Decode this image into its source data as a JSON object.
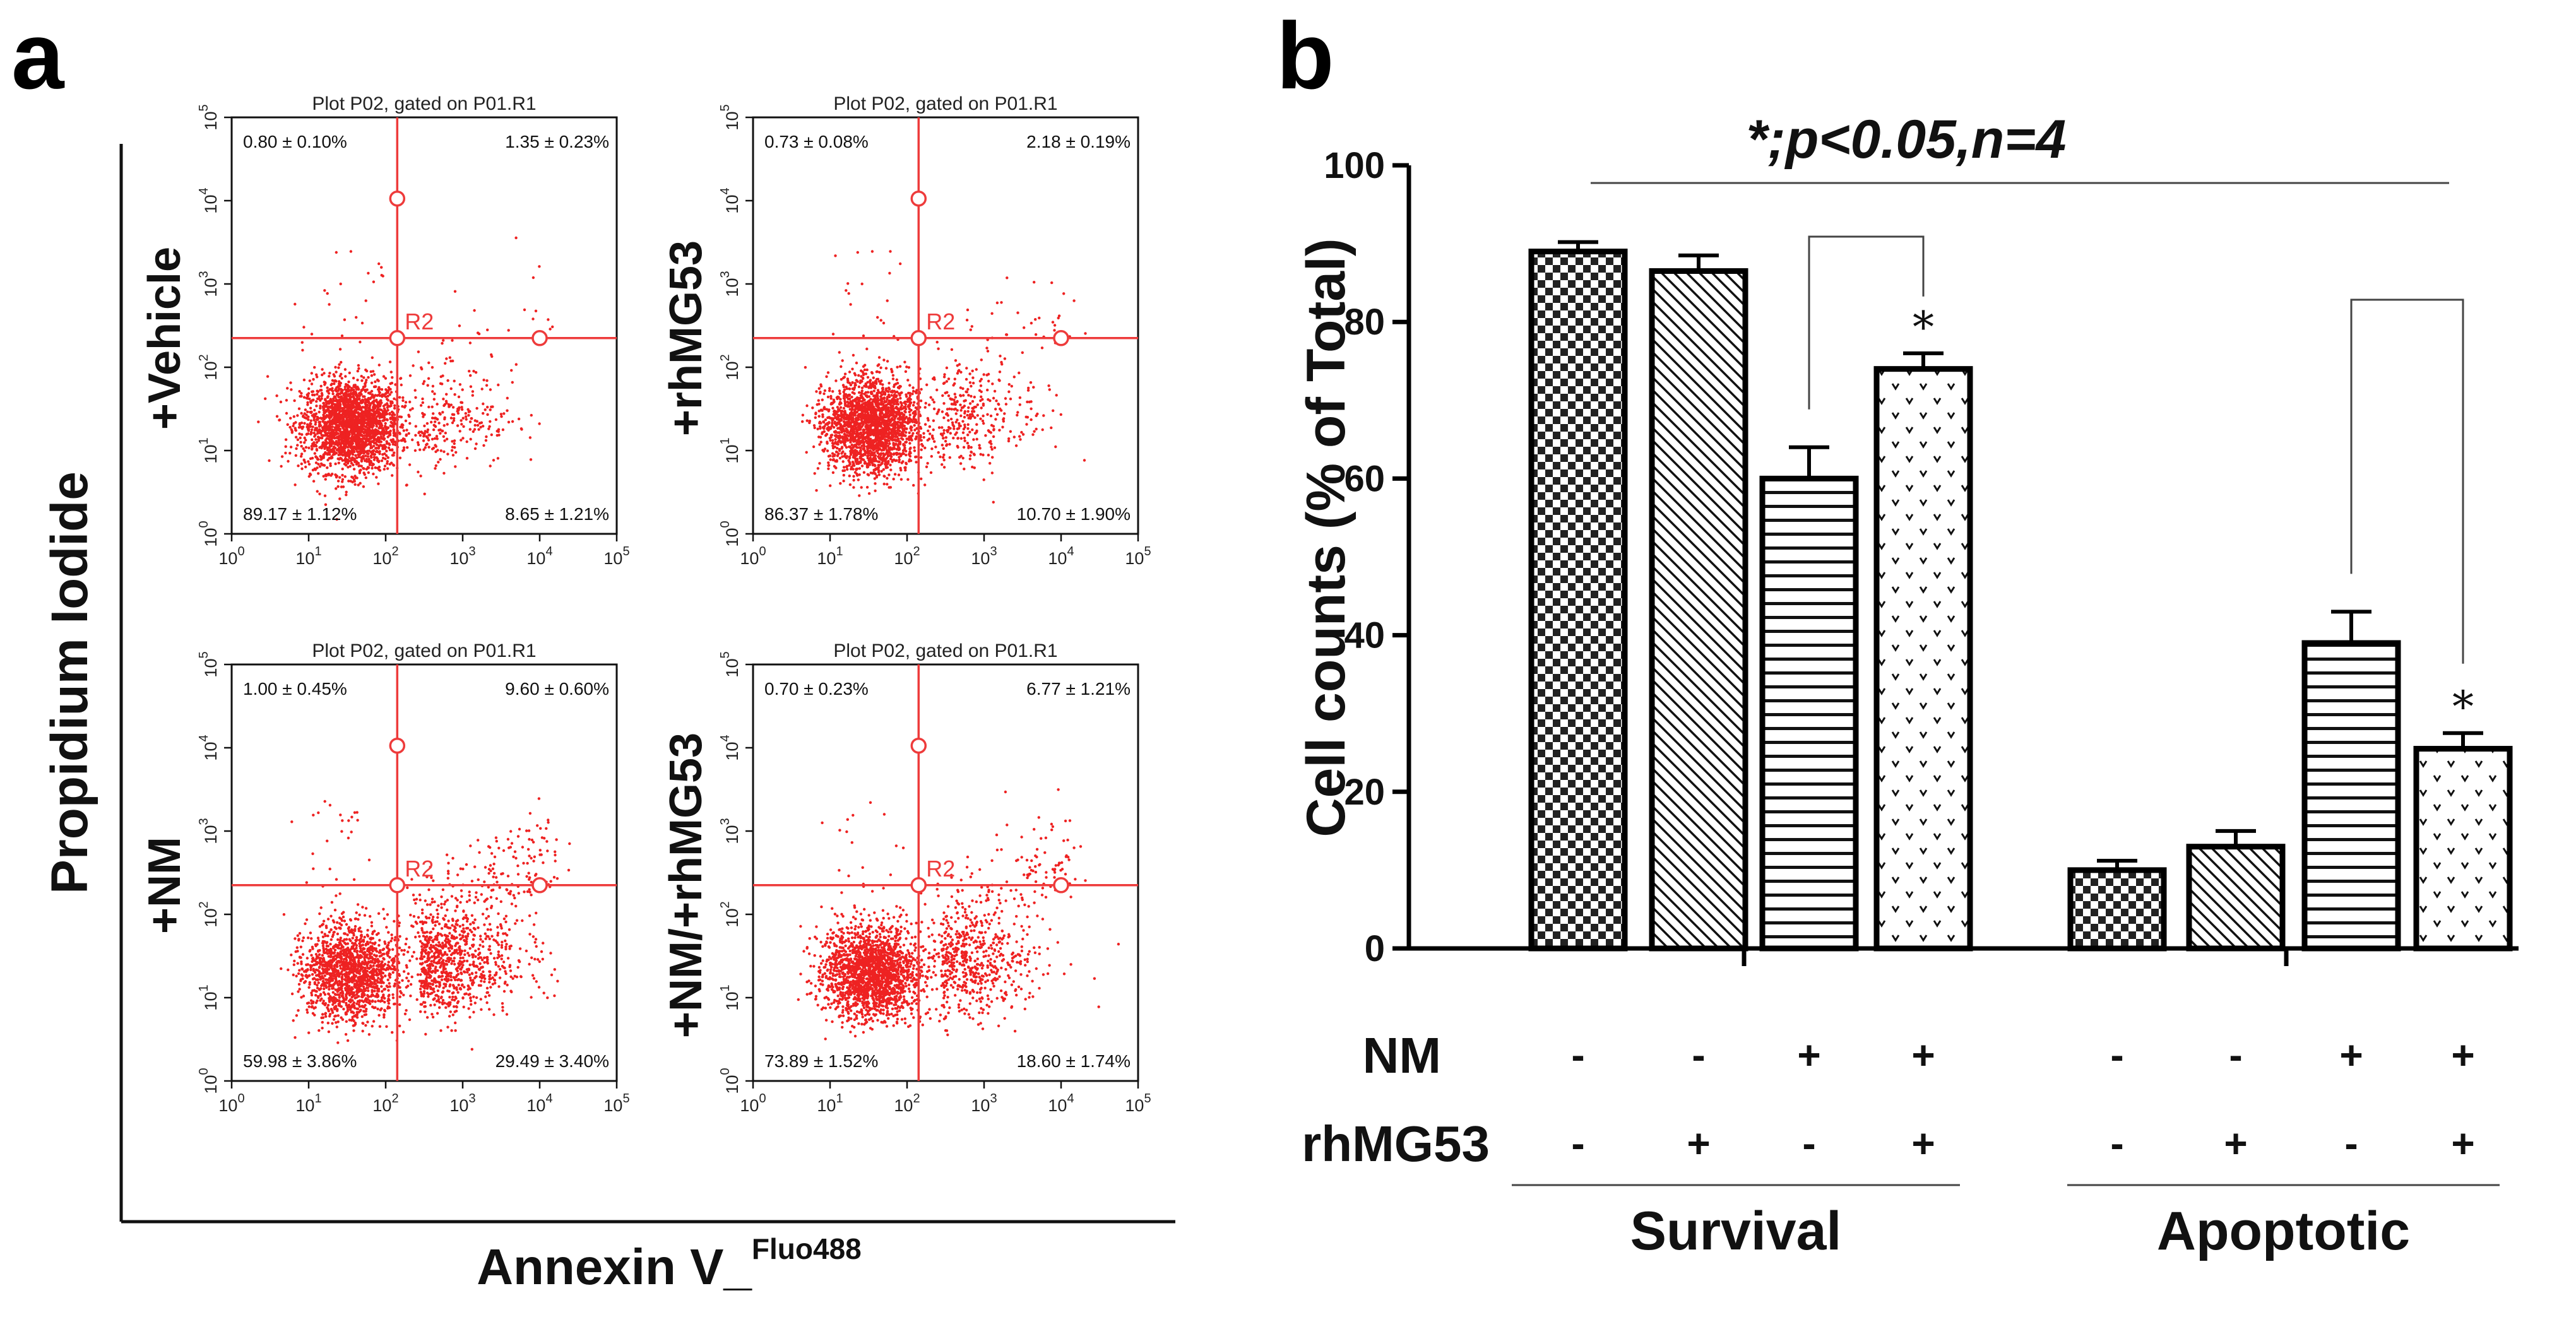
{
  "panel_a": {
    "letter": "a",
    "y_axis_title": "Propidium Iodide",
    "x_axis_title": "Annexin V_",
    "x_axis_title_sup": "Fluo488",
    "gate_label": "R2",
    "tick_labels": [
      "10",
      "10",
      "10",
      "10",
      "10",
      "10"
    ],
    "tick_exponents": [
      "0",
      "1",
      "2",
      "3",
      "4",
      "5"
    ],
    "plots": [
      {
        "title": "Plot P02, gated on P01.R1",
        "condition": "+Vehicle",
        "dot_color": "#ee2222",
        "quadrants": {
          "upper_left": "0.80 ± 0.10%",
          "upper_right": "1.35 ± 0.23%",
          "lower_left": "89.17 ± 1.12%",
          "lower_right": "8.65 ± 1.21%"
        }
      },
      {
        "title": "Plot P02, gated on P01.R1",
        "condition": "+rhMG53",
        "dot_color": "#ee2222",
        "quadrants": {
          "upper_left": "0.73 ± 0.08%",
          "upper_right": "2.18 ± 0.19%",
          "lower_left": "86.37 ± 1.78%",
          "lower_right": "10.70 ± 1.90%"
        }
      },
      {
        "title": "Plot P02, gated on P01.R1",
        "condition": "+NM",
        "dot_color": "#ee2222",
        "quadrants": {
          "upper_left": "1.00 ± 0.45%",
          "upper_right": "9.60 ± 0.60%",
          "lower_left": "59.98 ± 3.86%",
          "lower_right": "29.49 ± 3.40%"
        }
      },
      {
        "title": "Plot P02, gated on P01.R1",
        "condition": "+NM/+rhMG53",
        "dot_color": "#ee2222",
        "quadrants": {
          "upper_left": "0.70 ± 0.23%",
          "upper_right": "6.77 ± 1.21%",
          "lower_left": "73.89 ± 1.52%",
          "lower_right": "18.60 ± 1.74%"
        }
      }
    ]
  },
  "chart_data": {
    "type": "bar",
    "panel_letter": "b",
    "title": "*;p<0.05,n=4",
    "ylabel": "Cell counts (% of Total)",
    "ylim": [
      0,
      100
    ],
    "yticks": [
      0,
      20,
      40,
      60,
      80,
      100
    ],
    "groups": [
      {
        "name": "Survival",
        "values": [
          89,
          86.5,
          60,
          74
        ],
        "errors": [
          1.2,
          2,
          4,
          2
        ],
        "significant": [
          false,
          false,
          false,
          true
        ]
      },
      {
        "name": "Apoptotic",
        "values": [
          10,
          13,
          39,
          25.5
        ],
        "errors": [
          1.2,
          2,
          4,
          2
        ],
        "significant": [
          false,
          false,
          false,
          true
        ]
      }
    ],
    "bar_patterns": [
      "checker",
      "diagonal",
      "horizontal",
      "chevron"
    ],
    "significance_marker": "*",
    "conditions": {
      "rows": [
        {
          "label": "NM",
          "signs": [
            "-",
            "-",
            "+",
            "+",
            "-",
            "-",
            "+",
            "+"
          ]
        },
        {
          "label": "rhMG53",
          "signs": [
            "-",
            "+",
            "-",
            "+",
            "-",
            "+",
            "-",
            "+"
          ]
        }
      ]
    }
  }
}
